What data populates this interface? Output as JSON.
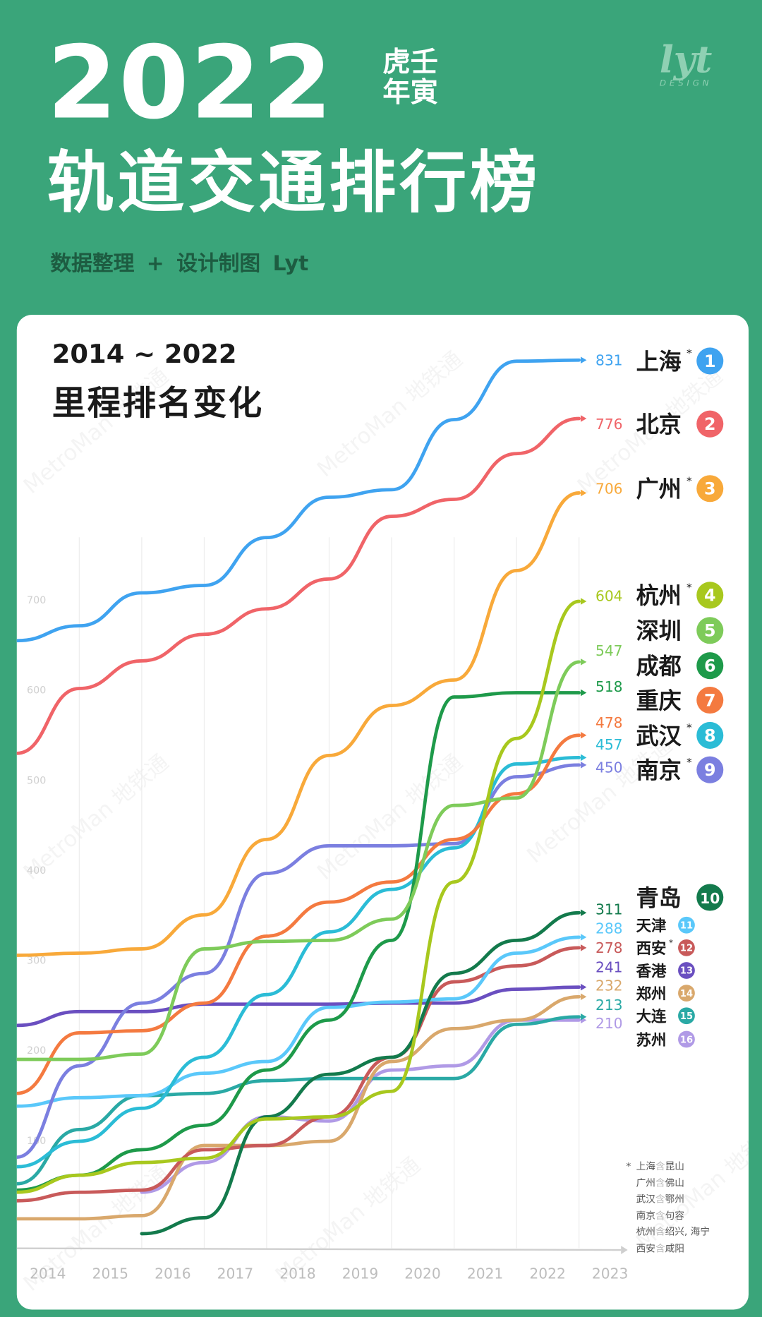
{
  "header": {
    "year": "2022",
    "zodiac_line1": "虎壬",
    "zodiac_line2": "年寅",
    "title": "轨道交通排行榜",
    "subtitle": "数据整理 + 设计制图  Lyt",
    "logo_text": "lyt",
    "logo_sub": "DESIGN"
  },
  "watermark": "MetroMan 地铁通",
  "colors": {
    "background": "#3aa57a",
    "card": "#ffffff"
  },
  "chart_data": {
    "type": "line",
    "title": "2014 ~ 2022",
    "subtitle": "里程排名变化",
    "x_tick_labels": [
      "2014",
      "2015",
      "2016",
      "2017",
      "2018",
      "2019",
      "2020",
      "2021",
      "2022",
      "2023"
    ],
    "y_tick_labels": [
      "100",
      "200",
      "300",
      "400",
      "500",
      "600",
      "700"
    ],
    "grid": "vertical",
    "series": [
      {
        "rank": "1",
        "name": "上海",
        "star": true,
        "label": "831",
        "color": "#3fa3f0",
        "values": [
          567,
          581,
          612,
          619,
          664,
          702,
          709,
          775,
          830,
          831
        ]
      },
      {
        "rank": "2",
        "name": "北京",
        "star": false,
        "label": "776",
        "color": "#f06468",
        "values": [
          461,
          522,
          548,
          573,
          597,
          625,
          684,
          700,
          743,
          776
        ]
      },
      {
        "rank": "3",
        "name": "广州",
        "star": true,
        "label": "706",
        "color": "#f8a93a",
        "values": [
          271,
          273,
          277,
          309,
          380,
          459,
          506,
          530,
          633,
          706
        ]
      },
      {
        "rank": "4",
        "name": "杭州",
        "star": true,
        "label": "604",
        "color": "#a8c81e",
        "values": [
          48,
          64,
          76,
          80,
          117,
          119,
          143,
          340,
          475,
          604
        ]
      },
      {
        "rank": "5",
        "name": "深圳",
        "star": false,
        "label": "547",
        "color": "#7ecb5a",
        "values": [
          173,
          173,
          178,
          277,
          284,
          285,
          305,
          412,
          419,
          547
        ]
      },
      {
        "rank": "6",
        "name": "成都",
        "star": false,
        "label": "518",
        "color": "#1e9a4a",
        "values": [
          50,
          64,
          88,
          111,
          163,
          210,
          285,
          514,
          518,
          518
        ]
      },
      {
        "rank": "7",
        "name": "重庆",
        "star": false,
        "label": "478",
        "color": "#f47a40",
        "values": [
          141,
          198,
          200,
          226,
          289,
          321,
          340,
          380,
          423,
          478
        ]
      },
      {
        "rank": "8",
        "name": "武汉",
        "star": true,
        "label": "457",
        "color": "#2bbcd6",
        "values": [
          72,
          96,
          127,
          175,
          234,
          293,
          333,
          372,
          451,
          457
        ]
      },
      {
        "rank": "9",
        "name": "南京",
        "star": true,
        "label": "450",
        "color": "#7b7fe0",
        "values": [
          81,
          167,
          226,
          254,
          348,
          374,
          374,
          376,
          439,
          450
        ]
      },
      {
        "rank": "10",
        "name": "青岛",
        "star": false,
        "label": "311",
        "color": "#137a4c",
        "values": [
          null,
          null,
          9,
          24,
          119,
          159,
          175,
          254,
          285,
          311
        ]
      },
      {
        "rank": "11",
        "name": "天津",
        "star": false,
        "label": "288",
        "color": "#5ac8fa",
        "values": [
          129,
          137,
          139,
          160,
          171,
          222,
          227,
          230,
          273,
          288
        ]
      },
      {
        "rank": "12",
        "name": "西安",
        "star": true,
        "label": "278",
        "color": "#c85a5a",
        "values": [
          40,
          48,
          50,
          88,
          92,
          119,
          175,
          246,
          261,
          278
        ]
      },
      {
        "rank": "13",
        "name": "香港",
        "star": false,
        "label": "241",
        "color": "#6a4fc0",
        "values": [
          205,
          218,
          218,
          225,
          225,
          225,
          226,
          226,
          239,
          241
        ]
      },
      {
        "rank": "14",
        "name": "郑州",
        "star": false,
        "label": "232",
        "color": "#d9a86c",
        "values": [
          23,
          23,
          26,
          92,
          92,
          96,
          171,
          202,
          210,
          232
        ]
      },
      {
        "rank": "15",
        "name": "大连",
        "star": false,
        "label": "213",
        "color": "#2aa9a5",
        "values": [
          56,
          107,
          139,
          141,
          153,
          155,
          155,
          155,
          206,
          213
        ]
      },
      {
        "rank": "16",
        "name": "苏州",
        "star": false,
        "label": "210",
        "color": "#b09ae6",
        "values": [
          null,
          null,
          48,
          76,
          119,
          115,
          163,
          167,
          210,
          210
        ]
      }
    ]
  },
  "footnotes": {
    "mark": "*",
    "contains": "含",
    "items": [
      {
        "city": "上海",
        "extra": "昆山"
      },
      {
        "city": "广州",
        "extra": "佛山"
      },
      {
        "city": "武汉",
        "extra": "鄂州"
      },
      {
        "city": "南京",
        "extra": "句容"
      },
      {
        "city": "杭州",
        "extra": "绍兴, 海宁"
      },
      {
        "city": "西安",
        "extra": "咸阳"
      }
    ]
  }
}
